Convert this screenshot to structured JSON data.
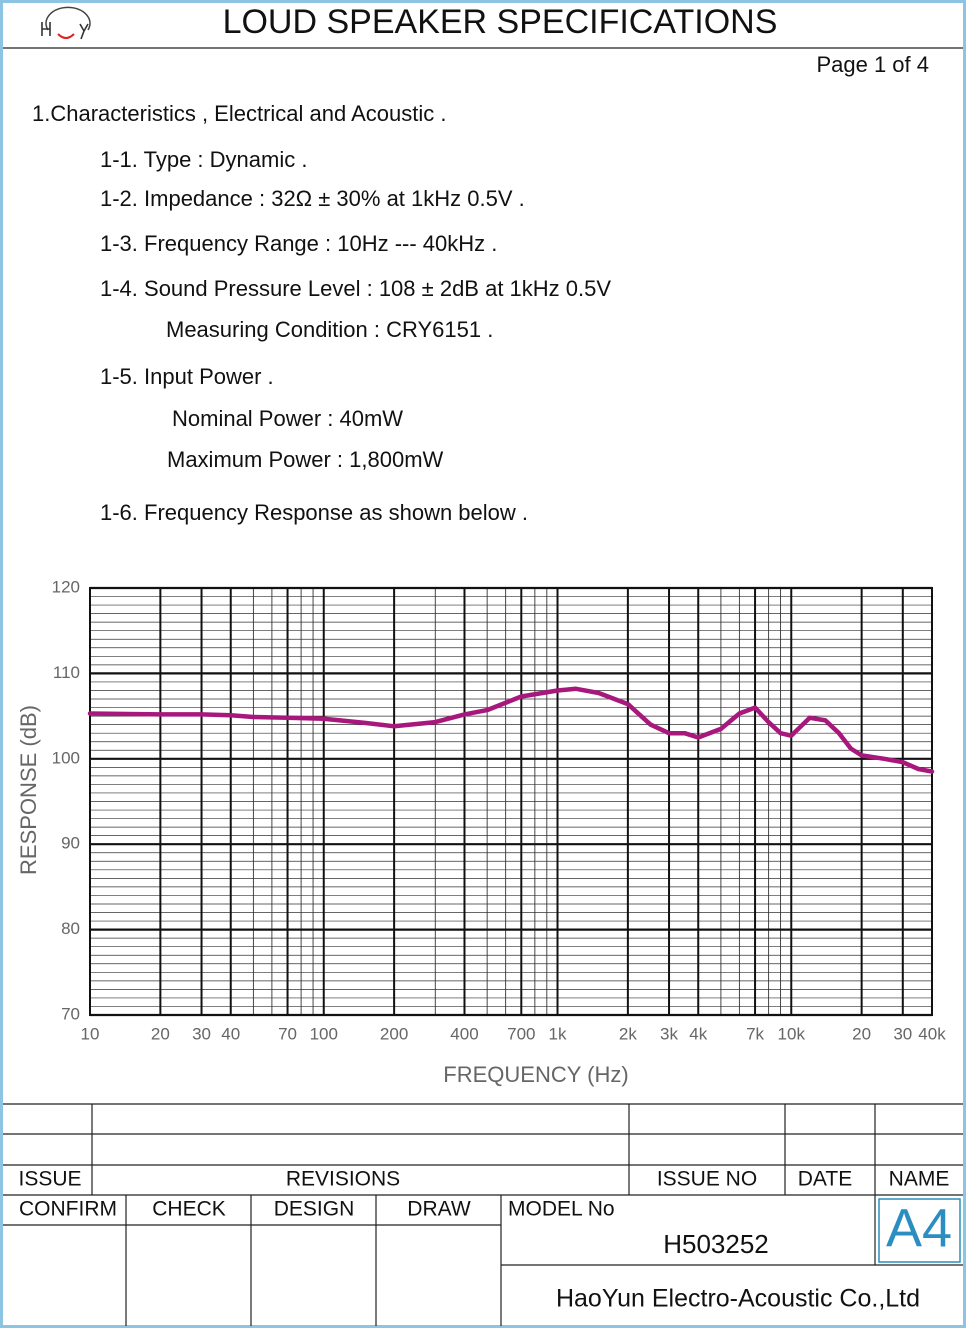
{
  "header": {
    "title": "LOUD SPEAKER SPECIFICATIONS",
    "page": "Page 1 of 4"
  },
  "section": "1.Characteristics , Electrical and Acoustic .",
  "items": [
    "1-1. Type : Dynamic .",
    "1-2. Impedance : 32Ω ± 30% at 1kHz 0.5V .",
    "1-3. Frequency Range : 10Hz --- 40kHz .",
    "1-4. Sound Pressure Level : 108 ± 2dB at 1kHz 0.5V",
    "Measuring Condition : CRY6151 .",
    "1-5. Input Power .",
    "Nominal Power : 40mW",
    "Maximum Power : 1,800mW",
    "1-6. Frequency Response as shown below ."
  ],
  "chart_data": {
    "type": "line",
    "x_label": "FREQUENCY (Hz)",
    "y_label": "RESPONSE (dB)",
    "x": [
      10,
      20,
      30,
      40,
      50,
      70,
      100,
      150,
      200,
      300,
      400,
      500,
      700,
      1000,
      1200,
      1500,
      2000,
      2500,
      3000,
      3500,
      4000,
      5000,
      6000,
      7000,
      8000,
      9000,
      10000,
      11000,
      12000,
      14000,
      16000,
      18000,
      20000,
      25000,
      30000,
      35000,
      40000
    ],
    "values": [
      105.3,
      105.2,
      105.2,
      105.1,
      104.9,
      104.8,
      104.7,
      104.2,
      103.8,
      104.3,
      105.2,
      105.7,
      107.3,
      108.0,
      108.2,
      107.7,
      106.4,
      104.0,
      103.0,
      103.0,
      102.5,
      103.5,
      105.3,
      106.0,
      104.3,
      103.0,
      102.7,
      103.8,
      104.8,
      104.5,
      103.0,
      101.2,
      100.4,
      100.0,
      99.6,
      98.8,
      98.5
    ],
    "color": "#a8187c",
    "log_x": true,
    "grid": true,
    "xlim": [
      10,
      40000
    ],
    "ylim": [
      70,
      120
    ],
    "xticks": [
      10,
      20,
      30,
      40,
      70,
      100,
      200,
      400,
      700,
      {
        "value": 1000,
        "label": "1k"
      },
      {
        "value": 2000,
        "label": "2k"
      },
      {
        "value": 3000,
        "label": "3k"
      },
      {
        "value": 4000,
        "label": "4k"
      },
      {
        "value": 7000,
        "label": "7k"
      },
      {
        "value": 10000,
        "label": "10k"
      },
      {
        "value": 20000,
        "label": "20"
      },
      {
        "value": 30000,
        "label": "30"
      },
      {
        "value": 40000,
        "label": "40k"
      }
    ],
    "yticks": [
      70,
      80,
      90,
      100,
      110,
      120
    ]
  },
  "table": {
    "headers": [
      "ISSUE",
      "REVISIONS",
      "ISSUE NO",
      "DATE",
      "NAME"
    ],
    "signoff": [
      "CONFIRM",
      "CHECK",
      "DESIGN",
      "DRAW"
    ],
    "model_label": "MODEL No",
    "model": "H503252",
    "size": "A4",
    "company": "HaoYun Electro-Acoustic Co.,Ltd"
  }
}
